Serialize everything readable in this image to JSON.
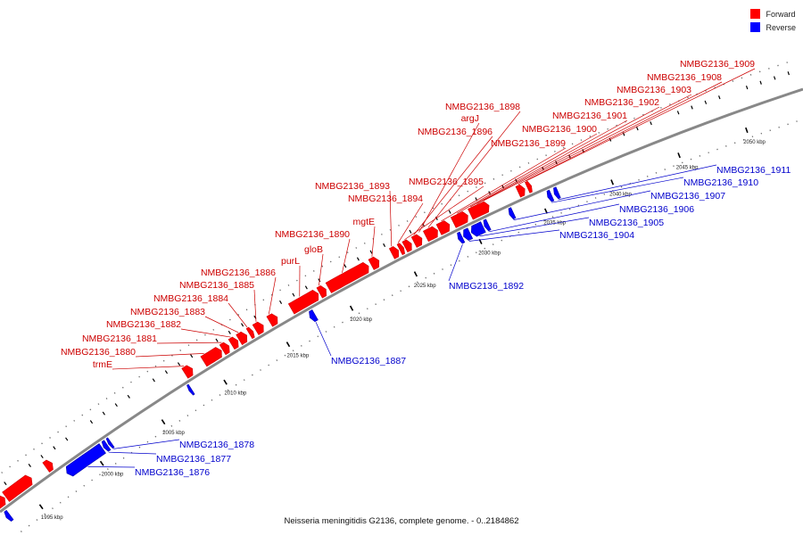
{
  "legend": {
    "forward_label": "Forward",
    "reverse_label": "Reverse",
    "forward_color": "#ff0000",
    "reverse_color": "#0000ff"
  },
  "caption": "Neisseria meningitidis G2136, complete genome. - 0..2184862",
  "colors": {
    "forward": "#ff0000",
    "forward_edge": "#cc0000",
    "reverse": "#0000ff",
    "reverse_edge": "#0000aa",
    "backbone": "#888888",
    "backbone_light": "#c8c8c8",
    "label_forward": "#cc0000",
    "label_reverse": "#0000cc"
  },
  "axis": {
    "unit": "kbp",
    "ticks": [
      1995,
      2000,
      2005,
      2010,
      2015,
      2020,
      2025,
      2030,
      2035,
      2040,
      2045,
      2050
    ],
    "tick_labels": [
      "1995 kbp",
      "2000 kbp",
      "2005 kbp",
      "2010 kbp",
      "2015 kbp",
      "2020 kbp",
      "2025 kbp",
      "2030 kbp",
      "2035 kbp",
      "2040 kbp",
      "2045 kbp",
      "2050 kbp"
    ]
  },
  "genes": {
    "forward": [
      {
        "name": "trmE",
        "labeled": true
      },
      {
        "name": "NMBG2136_1880",
        "labeled": true
      },
      {
        "name": "NMBG2136_1881",
        "labeled": true
      },
      {
        "name": "NMBG2136_1882",
        "labeled": true
      },
      {
        "name": "NMBG2136_1883",
        "labeled": true
      },
      {
        "name": "NMBG2136_1884",
        "labeled": true
      },
      {
        "name": "NMBG2136_1885",
        "labeled": true
      },
      {
        "name": "NMBG2136_1886",
        "labeled": true
      },
      {
        "name": "purL",
        "labeled": true
      },
      {
        "name": "gloB",
        "labeled": true
      },
      {
        "name": "NMBG2136_1890",
        "labeled": true
      },
      {
        "name": "mgtE",
        "labeled": true
      },
      {
        "name": "NMBG2136_1893",
        "labeled": true
      },
      {
        "name": "NMBG2136_1894",
        "labeled": true
      },
      {
        "name": "NMBG2136_1895",
        "labeled": true
      },
      {
        "name": "NMBG2136_1896",
        "labeled": true
      },
      {
        "name": "argJ",
        "labeled": true
      },
      {
        "name": "NMBG2136_1898",
        "labeled": true
      },
      {
        "name": "NMBG2136_1899",
        "labeled": true
      },
      {
        "name": "NMBG2136_1900",
        "labeled": true
      },
      {
        "name": "NMBG2136_1901",
        "labeled": true
      },
      {
        "name": "NMBG2136_1902",
        "labeled": true
      },
      {
        "name": "NMBG2136_1903",
        "labeled": true
      },
      {
        "name": "NMBG2136_1908",
        "labeled": true
      },
      {
        "name": "NMBG2136_1909",
        "labeled": true
      }
    ],
    "reverse": [
      {
        "name": "NMBG2136_1876",
        "labeled": true
      },
      {
        "name": "NMBG2136_1877",
        "labeled": true
      },
      {
        "name": "NMBG2136_1878",
        "labeled": true
      },
      {
        "name": "NMBG2136_1887",
        "labeled": true
      },
      {
        "name": "NMBG2136_1892",
        "labeled": true
      },
      {
        "name": "NMBG2136_1904",
        "labeled": true
      },
      {
        "name": "NMBG2136_1905",
        "labeled": true
      },
      {
        "name": "NMBG2136_1906",
        "labeled": true
      },
      {
        "name": "NMBG2136_1907",
        "labeled": true
      },
      {
        "name": "NMBG2136_1910",
        "labeled": true
      },
      {
        "name": "NMBG2136_1911",
        "labeled": true
      }
    ]
  }
}
